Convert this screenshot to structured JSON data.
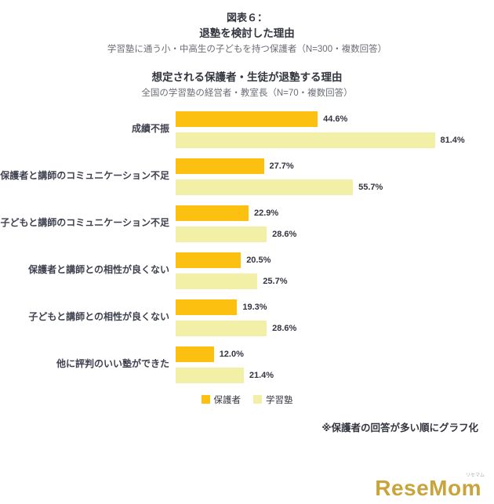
{
  "header": {
    "figure_label": "図表６：",
    "title": "退塾を検討した理由",
    "subtitle": "学習塾に通う小・中高生の子どもを持つ保護者（N=300・複数回答）",
    "title2": "想定される保護者・生徒が退塾する理由",
    "subtitle2": "全国の学習塾の経営者・教室長（N=70・複数回答）"
  },
  "chart_data": {
    "type": "bar",
    "orientation": "horizontal",
    "title": "退塾を検討した理由 / 想定される保護者・生徒が退塾する理由",
    "categories": [
      "成績不振",
      "保護者と講師のコミュニケーション不足",
      "子どもと講師のコミュニケーション不足",
      "保護者と講師との相性が良くない",
      "子どもと講師との相性が良くない",
      "他に評判のいい塾ができた"
    ],
    "series": [
      {
        "name": "保護者",
        "color": "#fcc010",
        "values": [
          44.6,
          27.7,
          22.9,
          20.5,
          19.3,
          12.0
        ]
      },
      {
        "name": "学習塾",
        "color": "#f2f0a6",
        "values": [
          81.4,
          55.7,
          28.6,
          25.7,
          28.6,
          21.4
        ]
      }
    ],
    "value_suffix": "%",
    "xlim": [
      0,
      100
    ],
    "grid": false,
    "legend_position": "bottom"
  },
  "footer": {
    "note": "※保護者の回答が多い順にグラフ化",
    "logo_text": "ReseMom",
    "logo_sub": "リセマム"
  }
}
